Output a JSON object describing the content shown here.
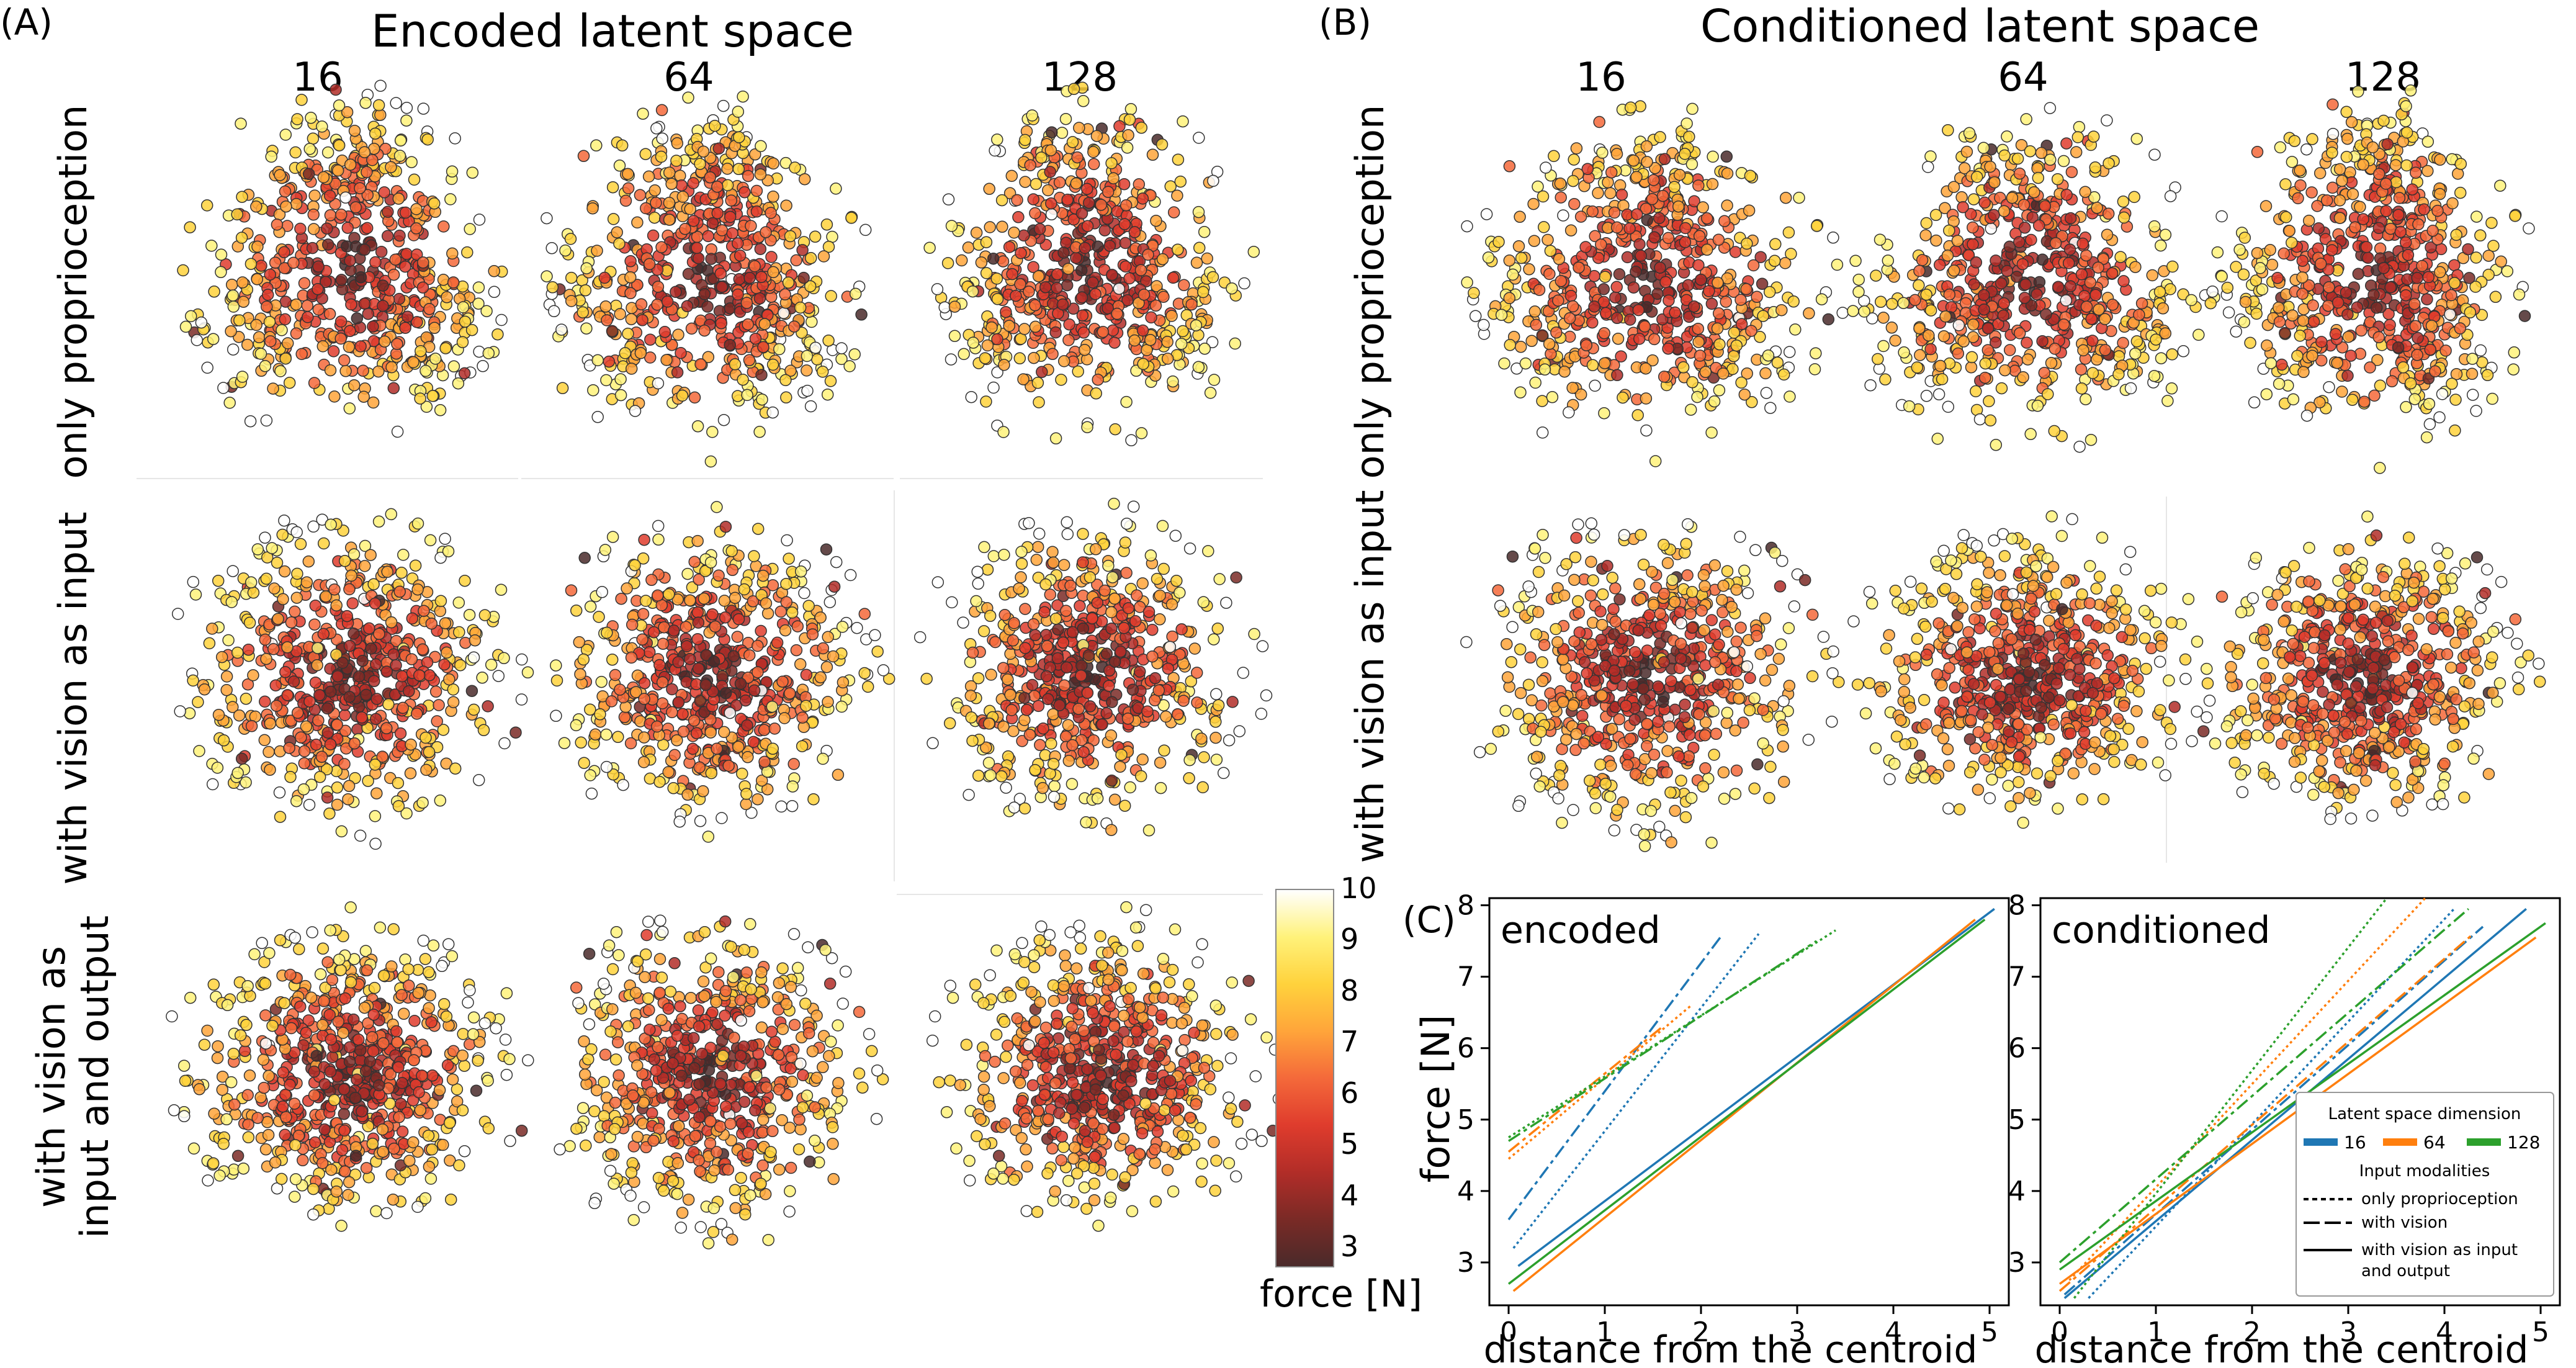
{
  "panel_a": {
    "letter": "(A)",
    "title": "Encoded latent space",
    "dims": [
      "16",
      "64",
      "128"
    ]
  },
  "panel_b": {
    "letter": "(B)",
    "title": "Conditioned latent space",
    "dims": [
      "16",
      "64",
      "128"
    ]
  },
  "row_labels": {
    "row1": "only proprioception",
    "row2": "with vision as input",
    "row3_line1": "with vision as",
    "row3_line2": "input and output"
  },
  "colorbar": {
    "label": "force [N]",
    "ticks": [
      "10",
      "9",
      "8",
      "7",
      "6",
      "5",
      "4",
      "3"
    ],
    "colors": [
      "#ffffff",
      "#fff27a",
      "#ffd23c",
      "#ffa53a",
      "#f4693a",
      "#df3c2d",
      "#b22d28",
      "#7a2a26",
      "#4a2a2a"
    ]
  },
  "panel_c": {
    "letter": "(C)",
    "xlabel": "distance from the centroid",
    "ylabel": "force [N]",
    "legend": {
      "title_dim": "Latent space dimension",
      "dims": [
        "16",
        "64",
        "128"
      ],
      "title_mod": "Input modalities",
      "mod1": "only proprioception",
      "mod2": "with vision",
      "mod3_line1": "with vision as input",
      "mod3_line2": "and output"
    }
  },
  "series_colors": {
    "16": "#1f77b4",
    "64": "#ff7f0e",
    "128": "#2ca02c"
  },
  "chart_data": [
    {
      "type": "line",
      "title": "encoded",
      "xlabel": "distance from the centroid",
      "ylabel": "force [N]",
      "xlim": [
        -0.2,
        5.2
      ],
      "ylim": [
        2.4,
        8.1
      ],
      "xticks": [
        0,
        1,
        2,
        3,
        4,
        5
      ],
      "yticks": [
        3,
        4,
        5,
        6,
        7,
        8
      ],
      "series": [
        {
          "dim": "16",
          "modality": "only proprioception",
          "x": [
            0.05,
            2.6
          ],
          "y": [
            3.2,
            7.6
          ]
        },
        {
          "dim": "16",
          "modality": "with vision",
          "x": [
            0.0,
            2.2
          ],
          "y": [
            3.6,
            7.55
          ]
        },
        {
          "dim": "16",
          "modality": "with vision as input and output",
          "x": [
            0.1,
            5.05
          ],
          "y": [
            2.95,
            7.95
          ]
        },
        {
          "dim": "64",
          "modality": "only proprioception",
          "x": [
            0.0,
            1.9
          ],
          "y": [
            4.45,
            6.6
          ]
        },
        {
          "dim": "64",
          "modality": "with vision",
          "x": [
            0.0,
            1.6
          ],
          "y": [
            4.55,
            6.3
          ]
        },
        {
          "dim": "64",
          "modality": "with vision as input and output",
          "x": [
            0.05,
            4.85
          ],
          "y": [
            2.6,
            7.8
          ]
        },
        {
          "dim": "128",
          "modality": "only proprioception",
          "x": [
            0.0,
            3.4
          ],
          "y": [
            4.75,
            7.65
          ]
        },
        {
          "dim": "128",
          "modality": "with vision",
          "x": [
            0.0,
            3.2
          ],
          "y": [
            4.7,
            7.5
          ]
        },
        {
          "dim": "128",
          "modality": "with vision as input and output",
          "x": [
            0.0,
            4.95
          ],
          "y": [
            2.7,
            7.8
          ]
        }
      ]
    },
    {
      "type": "line",
      "title": "conditioned",
      "xlabel": "distance from the centroid",
      "ylabel": "force [N]",
      "xlim": [
        -0.2,
        5.2
      ],
      "ylim": [
        2.4,
        8.1
      ],
      "xticks": [
        0,
        1,
        2,
        3,
        4,
        5
      ],
      "yticks": [
        3,
        4,
        5,
        6,
        7,
        8
      ],
      "series": [
        {
          "dim": "16",
          "modality": "only proprioception",
          "x": [
            0.3,
            4.1
          ],
          "y": [
            2.5,
            7.95
          ]
        },
        {
          "dim": "16",
          "modality": "with vision",
          "x": [
            0.05,
            4.4
          ],
          "y": [
            2.55,
            7.7
          ]
        },
        {
          "dim": "16",
          "modality": "with vision as input and output",
          "x": [
            0.05,
            4.85
          ],
          "y": [
            2.5,
            7.95
          ]
        },
        {
          "dim": "64",
          "modality": "only proprioception",
          "x": [
            0.1,
            3.8
          ],
          "y": [
            2.75,
            8.1
          ]
        },
        {
          "dim": "64",
          "modality": "with vision",
          "x": [
            0.0,
            4.3
          ],
          "y": [
            2.6,
            7.6
          ]
        },
        {
          "dim": "64",
          "modality": "with vision as input and output",
          "x": [
            0.0,
            4.95
          ],
          "y": [
            2.7,
            7.55
          ]
        },
        {
          "dim": "128",
          "modality": "only proprioception",
          "x": [
            0.15,
            3.4
          ],
          "y": [
            2.5,
            8.1
          ]
        },
        {
          "dim": "128",
          "modality": "with vision",
          "x": [
            0.0,
            4.25
          ],
          "y": [
            3.0,
            7.95
          ]
        },
        {
          "dim": "128",
          "modality": "with vision as input and output",
          "x": [
            0.0,
            5.05
          ],
          "y": [
            2.9,
            7.75
          ]
        }
      ]
    }
  ]
}
